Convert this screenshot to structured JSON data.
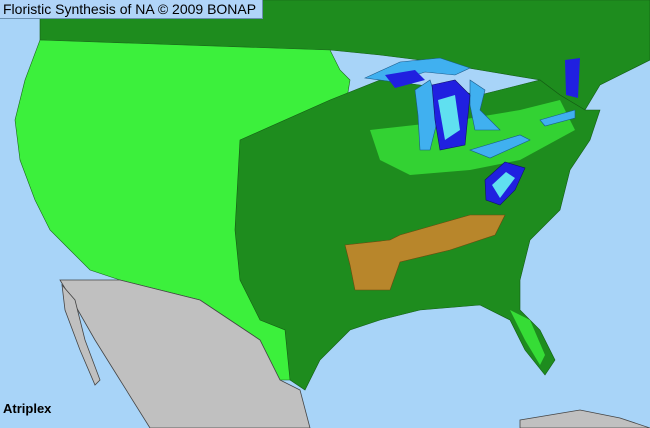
{
  "header": {
    "title": "Floristic Synthesis of NA © 2009 BONAP"
  },
  "map": {
    "taxon": "Atriplex",
    "colors": {
      "ocean": "#a8d4f8",
      "present_native": "#1e8c1e",
      "present_state": "#3cf03c",
      "no_data_outside": "#c0c0c0",
      "rare_state": "#b8862b",
      "noxious_blue": "#2020e0",
      "noxious_cyan": "#60e0f0",
      "lakes": "#40b0f0"
    }
  }
}
